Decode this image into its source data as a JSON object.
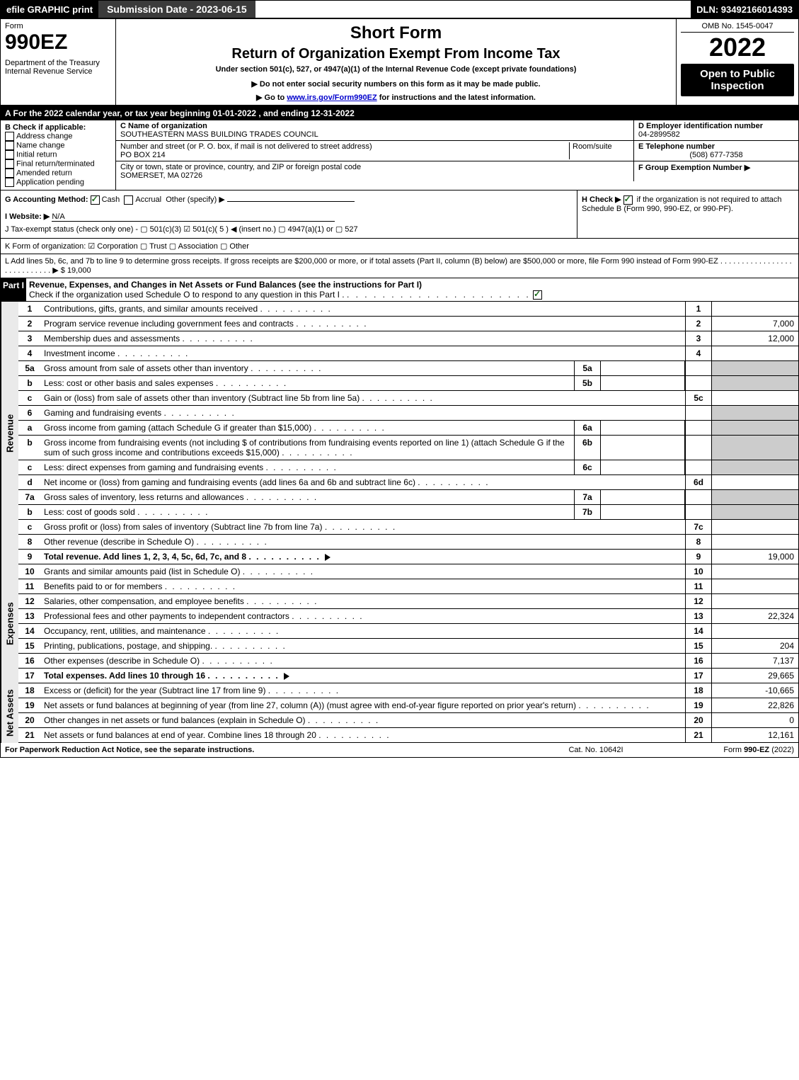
{
  "topbar": {
    "efile": "efile GRAPHIC print",
    "submission": "Submission Date - 2023-06-15",
    "dln": "DLN: 93492166014393"
  },
  "header": {
    "form_label": "Form",
    "form_number": "990EZ",
    "dept": "Department of the Treasury",
    "irs": "Internal Revenue Service",
    "short_form": "Short Form",
    "title": "Return of Organization Exempt From Income Tax",
    "subtitle": "Under section 501(c), 527, or 4947(a)(1) of the Internal Revenue Code (except private foundations)",
    "warn": "▶ Do not enter social security numbers on this form as it may be made public.",
    "goto": "▶ Go to www.irs.gov/Form990EZ for instructions and the latest information.",
    "omb": "OMB No. 1545-0047",
    "year": "2022",
    "open": "Open to Public Inspection"
  },
  "sectionA": "A  For the 2022 calendar year, or tax year beginning 01-01-2022 , and ending 12-31-2022",
  "boxB": {
    "label": "B  Check if applicable:",
    "items": [
      "Address change",
      "Name change",
      "Initial return",
      "Final return/terminated",
      "Amended return",
      "Application pending"
    ]
  },
  "boxC": {
    "name_label": "C Name of organization",
    "name": "SOUTHEASTERN MASS BUILDING TRADES COUNCIL",
    "addr_label": "Number and street (or P. O. box, if mail is not delivered to street address)",
    "addr": "PO BOX 214",
    "room_label": "Room/suite",
    "city_label": "City or town, state or province, country, and ZIP or foreign postal code",
    "city": "SOMERSET, MA  02726"
  },
  "boxD": {
    "label": "D Employer identification number",
    "value": "04-2899582"
  },
  "boxE": {
    "label": "E Telephone number",
    "value": "(508) 677-7358"
  },
  "boxF": {
    "label": "F Group Exemption Number  ▶"
  },
  "rowG": {
    "g": "G Accounting Method:",
    "cash": "Cash",
    "accrual": "Accrual",
    "other": "Other (specify) ▶",
    "h": "H  Check ▶ ",
    "h_text": " if the organization is not required to attach Schedule B (Form 990, 990-EZ, or 990-PF)."
  },
  "rowI": {
    "label": "I Website: ▶",
    "value": "N/A"
  },
  "rowJ": "J Tax-exempt status (check only one) -  ▢ 501(c)(3)  ☑ 501(c)( 5 ) ◀ (insert no.)  ▢ 4947(a)(1) or  ▢ 527",
  "rowK": "K Form of organization:  ☑ Corporation  ▢ Trust  ▢ Association  ▢ Other",
  "rowL": {
    "text": "L Add lines 5b, 6c, and 7b to line 9 to determine gross receipts. If gross receipts are $200,000 or more, or if total assets (Part II, column (B) below) are $500,000 or more, file Form 990 instead of Form 990-EZ  .  .  .  .  .  .  .  .  .  .  .  .  .  .  .  .  .  .  .  .  .  .  .  .  .  .  .  .  ▶ $",
    "value": "19,000"
  },
  "partI": {
    "label": "Part I",
    "title": "Revenue, Expenses, and Changes in Net Assets or Fund Balances (see the instructions for Part I)",
    "check": "Check if the organization used Schedule O to respond to any question in this Part I ."
  },
  "sections": {
    "revenue": "Revenue",
    "expenses": "Expenses",
    "netassets": "Net Assets"
  },
  "lines": [
    {
      "n": "1",
      "desc": "Contributions, gifts, grants, and similar amounts received",
      "ref": "1",
      "val": ""
    },
    {
      "n": "2",
      "desc": "Program service revenue including government fees and contracts",
      "ref": "2",
      "val": "7,000"
    },
    {
      "n": "3",
      "desc": "Membership dues and assessments",
      "ref": "3",
      "val": "12,000"
    },
    {
      "n": "4",
      "desc": "Investment income",
      "ref": "4",
      "val": ""
    },
    {
      "n": "5a",
      "desc": "Gross amount from sale of assets other than inventory",
      "mid_ref": "5a",
      "grey": true
    },
    {
      "n": "b",
      "desc": "Less: cost or other basis and sales expenses",
      "mid_ref": "5b",
      "grey": true
    },
    {
      "n": "c",
      "desc": "Gain or (loss) from sale of assets other than inventory (Subtract line 5b from line 5a)",
      "ref": "5c",
      "val": ""
    },
    {
      "n": "6",
      "desc": "Gaming and fundraising events",
      "grey": true
    },
    {
      "n": "a",
      "desc": "Gross income from gaming (attach Schedule G if greater than $15,000)",
      "mid_ref": "6a",
      "grey": true
    },
    {
      "n": "b",
      "desc": "Gross income from fundraising events (not including $                    of contributions from fundraising events reported on line 1) (attach Schedule G if the sum of such gross income and contributions exceeds $15,000)",
      "mid_ref": "6b",
      "grey": true
    },
    {
      "n": "c",
      "desc": "Less: direct expenses from gaming and fundraising events",
      "mid_ref": "6c",
      "grey": true
    },
    {
      "n": "d",
      "desc": "Net income or (loss) from gaming and fundraising events (add lines 6a and 6b and subtract line 6c)",
      "ref": "6d",
      "val": ""
    },
    {
      "n": "7a",
      "desc": "Gross sales of inventory, less returns and allowances",
      "mid_ref": "7a",
      "grey": true
    },
    {
      "n": "b",
      "desc": "Less: cost of goods sold",
      "mid_ref": "7b",
      "grey": true
    },
    {
      "n": "c",
      "desc": "Gross profit or (loss) from sales of inventory (Subtract line 7b from line 7a)",
      "ref": "7c",
      "val": ""
    },
    {
      "n": "8",
      "desc": "Other revenue (describe in Schedule O)",
      "ref": "8",
      "val": ""
    },
    {
      "n": "9",
      "desc": "Total revenue. Add lines 1, 2, 3, 4, 5c, 6d, 7c, and 8",
      "ref": "9",
      "val": "19,000",
      "bold": true,
      "arrow": true
    }
  ],
  "exp_lines": [
    {
      "n": "10",
      "desc": "Grants and similar amounts paid (list in Schedule O)",
      "ref": "10",
      "val": ""
    },
    {
      "n": "11",
      "desc": "Benefits paid to or for members",
      "ref": "11",
      "val": ""
    },
    {
      "n": "12",
      "desc": "Salaries, other compensation, and employee benefits",
      "ref": "12",
      "val": ""
    },
    {
      "n": "13",
      "desc": "Professional fees and other payments to independent contractors",
      "ref": "13",
      "val": "22,324"
    },
    {
      "n": "14",
      "desc": "Occupancy, rent, utilities, and maintenance",
      "ref": "14",
      "val": ""
    },
    {
      "n": "15",
      "desc": "Printing, publications, postage, and shipping.",
      "ref": "15",
      "val": "204"
    },
    {
      "n": "16",
      "desc": "Other expenses (describe in Schedule O)",
      "ref": "16",
      "val": "7,137"
    },
    {
      "n": "17",
      "desc": "Total expenses. Add lines 10 through 16",
      "ref": "17",
      "val": "29,665",
      "bold": true,
      "arrow": true
    }
  ],
  "net_lines": [
    {
      "n": "18",
      "desc": "Excess or (deficit) for the year (Subtract line 17 from line 9)",
      "ref": "18",
      "val": "-10,665"
    },
    {
      "n": "19",
      "desc": "Net assets or fund balances at beginning of year (from line 27, column (A)) (must agree with end-of-year figure reported on prior year's return)",
      "ref": "19",
      "val": "22,826"
    },
    {
      "n": "20",
      "desc": "Other changes in net assets or fund balances (explain in Schedule O)",
      "ref": "20",
      "val": "0"
    },
    {
      "n": "21",
      "desc": "Net assets or fund balances at end of year. Combine lines 18 through 20",
      "ref": "21",
      "val": "12,161"
    }
  ],
  "footer": {
    "left": "For Paperwork Reduction Act Notice, see the separate instructions.",
    "mid": "Cat. No. 10642I",
    "right": "Form 990-EZ (2022)"
  },
  "colors": {
    "black": "#000000",
    "grey_fill": "#cccccc",
    "light_grey": "#eaeaea",
    "dark_grey": "#3b3b3b",
    "check_green": "#1a6b1a",
    "link_blue": "#0000cc"
  }
}
